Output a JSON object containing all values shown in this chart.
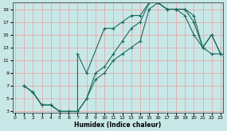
{
  "xlabel": "Humidex (Indice chaleur)",
  "bg_color": "#c8e8e8",
  "grid_color": "#e8a8a8",
  "line_color": "#1a6b5a",
  "xlim": [
    0,
    23
  ],
  "ylim": [
    3,
    20
  ],
  "xticks": [
    0,
    1,
    2,
    3,
    4,
    5,
    6,
    7,
    8,
    9,
    10,
    11,
    12,
    13,
    14,
    15,
    16,
    17,
    18,
    19,
    20,
    21,
    22,
    23
  ],
  "yticks": [
    3,
    5,
    7,
    9,
    11,
    13,
    15,
    17,
    19
  ],
  "line1_x": [
    1,
    2,
    3,
    4,
    5,
    6,
    7,
    7,
    8,
    10,
    11,
    12,
    13,
    14,
    15,
    16,
    17,
    18,
    19,
    20,
    21,
    22,
    23
  ],
  "line1_y": [
    7,
    6,
    4,
    4,
    3,
    3,
    3,
    12,
    9,
    16,
    16,
    17,
    18,
    18,
    20,
    20,
    19,
    19,
    19,
    17,
    13,
    15,
    12
  ],
  "line2_x": [
    1,
    2,
    3,
    4,
    5,
    6,
    7,
    8,
    9,
    10,
    11,
    12,
    13,
    14,
    15,
    16,
    17,
    18,
    19,
    20,
    21,
    22,
    23
  ],
  "line2_y": [
    7,
    6,
    4,
    4,
    3,
    3,
    3,
    5,
    9,
    10,
    12,
    14,
    16,
    17,
    20,
    20,
    19,
    19,
    19,
    18,
    13,
    15,
    12
  ],
  "line3_x": [
    1,
    2,
    3,
    4,
    5,
    6,
    7,
    8,
    9,
    10,
    11,
    12,
    13,
    14,
    15,
    16,
    17,
    18,
    19,
    20,
    21,
    22,
    23
  ],
  "line3_y": [
    7,
    6,
    4,
    4,
    3,
    3,
    3,
    5,
    8,
    9,
    11,
    12,
    13,
    14,
    19,
    20,
    19,
    19,
    18,
    15,
    13,
    12,
    12
  ]
}
